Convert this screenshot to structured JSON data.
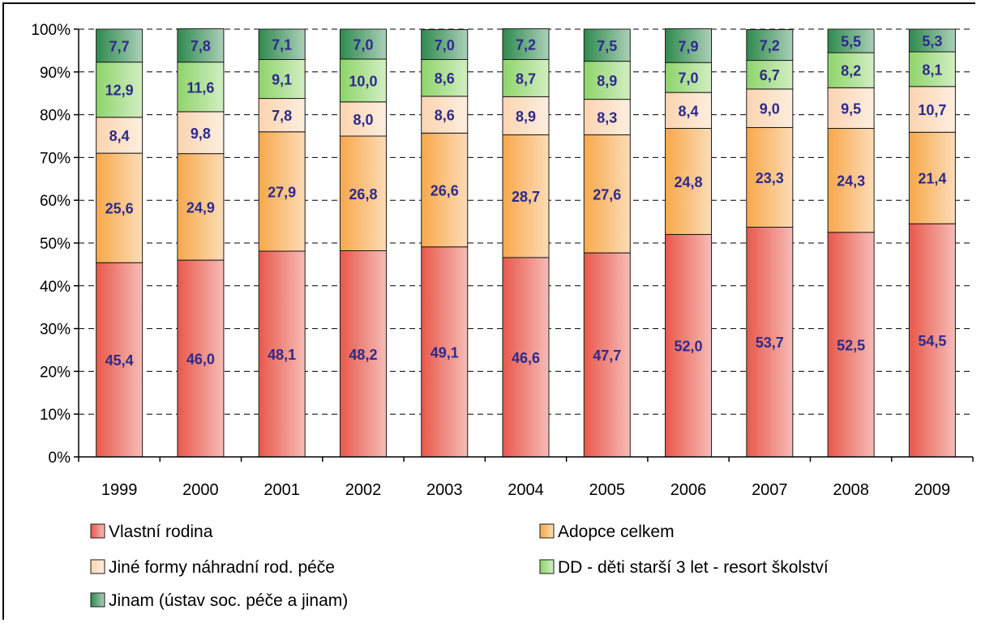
{
  "chart_data": {
    "type": "bar",
    "stacked": true,
    "percent": true,
    "title": "",
    "xlabel": "",
    "ylabel": "",
    "ylim": [
      0,
      100
    ],
    "yticks": [
      "0%",
      "10%",
      "20%",
      "30%",
      "40%",
      "50%",
      "60%",
      "70%",
      "80%",
      "90%",
      "100%"
    ],
    "grid": "horizontal-dashed",
    "legend_position": "bottom",
    "categories": [
      "1999",
      "2000",
      "2001",
      "2002",
      "2003",
      "2004",
      "2005",
      "2006",
      "2007",
      "2008",
      "2009"
    ],
    "series": [
      {
        "name": "Vlastní rodina",
        "color": "#e8584a",
        "values": [
          45.4,
          46.0,
          48.1,
          48.2,
          49.1,
          46.6,
          47.7,
          52.0,
          53.7,
          52.5,
          54.5
        ],
        "labels": [
          "45,4",
          "46,0",
          "48,1",
          "48,2",
          "49,1",
          "46,6",
          "47,7",
          "52,0",
          "53,7",
          "52,5",
          "54,5"
        ]
      },
      {
        "name": "Adopce celkem",
        "color": "#f7a84a",
        "values": [
          25.6,
          24.9,
          27.9,
          26.8,
          26.6,
          28.7,
          27.6,
          24.8,
          23.3,
          24.3,
          21.4
        ],
        "labels": [
          "25,6",
          "24,9",
          "27,9",
          "26,8",
          "26,6",
          "28,7",
          "27,6",
          "24,8",
          "23,3",
          "24,3",
          "21,4"
        ]
      },
      {
        "name": "Jiné formy náhradní rod. péče",
        "color": "#fbd4b0",
        "values": [
          8.4,
          9.8,
          7.8,
          8.0,
          8.6,
          8.9,
          8.3,
          8.4,
          9.0,
          9.5,
          10.7
        ],
        "labels": [
          "8,4",
          "9,8",
          "7,8",
          "8,0",
          "8,6",
          "8,9",
          "8,3",
          "8,4",
          "9,0",
          "9,5",
          "10,7"
        ]
      },
      {
        "name": "DD - děti starší 3 let - resort školství",
        "color": "#8ed46a",
        "values": [
          12.9,
          11.6,
          9.1,
          10.0,
          8.6,
          8.7,
          8.9,
          7.0,
          6.7,
          8.2,
          8.1
        ],
        "labels": [
          "12,9",
          "11,6",
          "9,1",
          "10,0",
          "8,6",
          "8,7",
          "8,9",
          "7,0",
          "6,7",
          "8,2",
          "8,1"
        ]
      },
      {
        "name": "Jinam (ústav soc. péče a jinam)",
        "color": "#2e8a4e",
        "values": [
          7.7,
          7.8,
          7.1,
          7.0,
          7.0,
          7.2,
          7.5,
          7.9,
          7.2,
          5.5,
          5.3
        ],
        "labels": [
          "7,7",
          "7,8",
          "7,1",
          "7,0",
          "7,0",
          "7,2",
          "7,5",
          "7,9",
          "7,2",
          "5,5",
          "5,3"
        ]
      }
    ]
  }
}
